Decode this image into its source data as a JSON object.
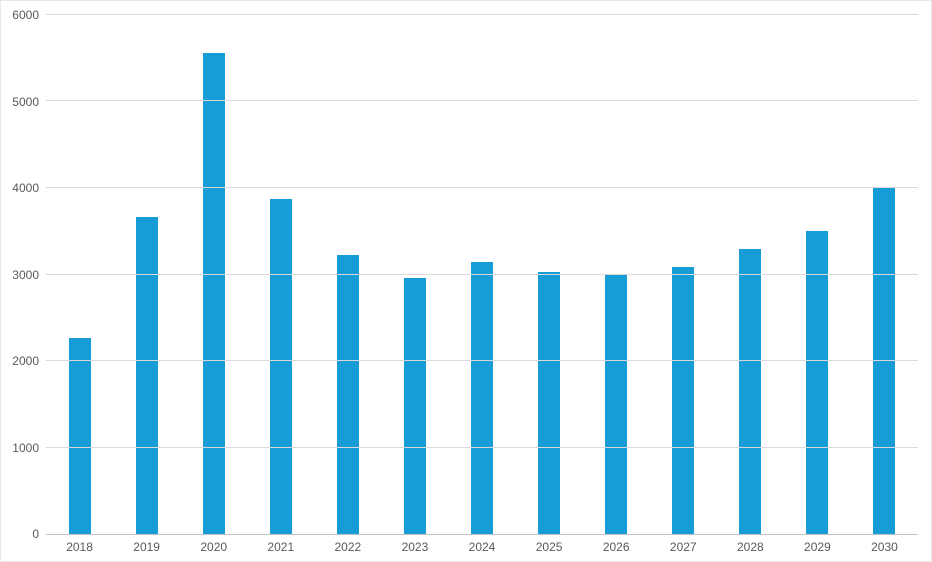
{
  "chart_data": {
    "type": "bar",
    "title": "",
    "xlabel": "",
    "ylabel": "",
    "categories": [
      "2018",
      "2019",
      "2020",
      "2021",
      "2022",
      "2023",
      "2024",
      "2025",
      "2026",
      "2027",
      "2028",
      "2029",
      "2030"
    ],
    "values": [
      2270,
      3670,
      5560,
      3870,
      3230,
      2960,
      3150,
      3030,
      3010,
      3090,
      3290,
      3500,
      4000
    ],
    "ylim": [
      0,
      6000
    ],
    "y_ticks": [
      0,
      1000,
      2000,
      3000,
      4000,
      5000,
      6000
    ],
    "grid": "horizontal",
    "legend": "none",
    "bar_color": "#189cd8",
    "gridline_color": "#d9d9d9",
    "axis_line_color": "#c2c2c2",
    "tick_label_color": "#595959",
    "background_color": "#ffffff"
  }
}
